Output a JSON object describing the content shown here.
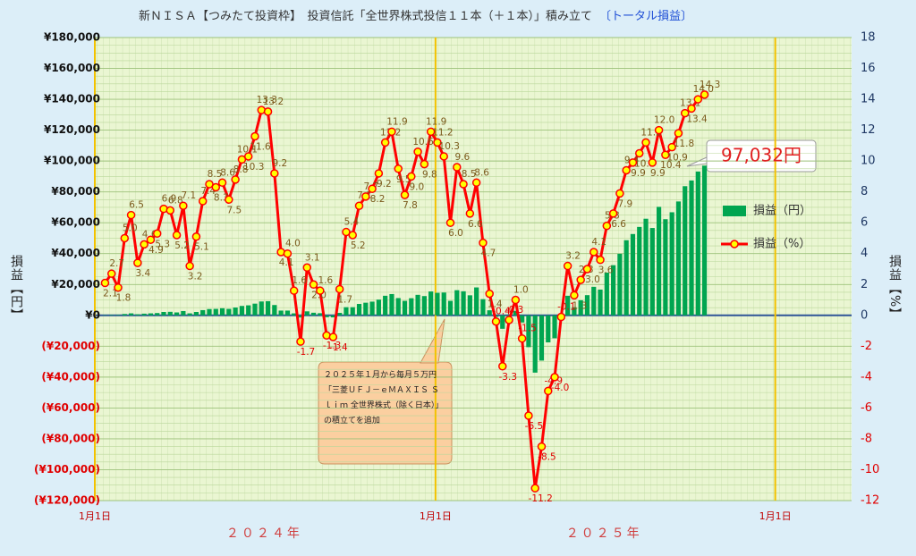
{
  "chart_data": {
    "type": "bar_line",
    "title": "新ＮＩＳＡ【つみたて投資枠】　投資信託「全世界株式投信１１本（＋１本）」積み立て",
    "subtitle": "〔トータル損益〕",
    "y_label": "損益【円】",
    "y2_label": "損益【%】",
    "x": [
      "2024-01-12",
      "2024-01-19",
      "2024-01-26",
      "2024-02-02",
      "2024-02-09",
      "2024-02-16",
      "2024-02-23",
      "2024-03-01",
      "2024-03-08",
      "2024-03-15",
      "2024-03-22",
      "2024-03-29",
      "2024-04-05",
      "2024-04-12",
      "2024-04-19",
      "2024-04-26",
      "2024-05-03",
      "2024-05-10",
      "2024-05-17",
      "2024-05-24",
      "2024-05-31",
      "2024-06-07",
      "2024-06-14",
      "2024-06-21",
      "2024-06-28",
      "2024-07-05",
      "2024-07-12",
      "2024-07-19",
      "2024-07-26",
      "2024-08-02",
      "2024-08-09",
      "2024-08-16",
      "2024-08-23",
      "2024-08-30",
      "2024-09-06",
      "2024-09-13",
      "2024-09-20",
      "2024-09-27",
      "2024-10-04",
      "2024-10-11",
      "2024-10-18",
      "2024-10-25",
      "2024-11-01",
      "2024-11-08",
      "2024-11-15",
      "2024-11-22",
      "2024-11-29",
      "2024-12-06",
      "2024-12-13",
      "2024-12-20",
      "2024-12-27",
      "2025-01-03",
      "2025-01-10",
      "2025-01-17",
      "2025-01-24",
      "2025-01-31",
      "2025-02-07",
      "2025-02-14",
      "2025-02-21",
      "2025-02-28",
      "2025-03-07",
      "2025-03-14",
      "2025-03-21",
      "2025-03-28",
      "2025-04-04",
      "2025-04-11",
      "2025-04-18",
      "2025-04-25",
      "2025-05-02",
      "2025-05-09",
      "2025-05-16",
      "2025-05-23",
      "2025-05-30",
      "2025-06-06",
      "2025-06-13",
      "2025-06-20",
      "2025-06-27",
      "2025-07-04",
      "2025-07-11",
      "2025-07-18",
      "2025-07-25",
      "2025-08-01",
      "2025-08-08",
      "2025-08-15",
      "2025-08-22",
      "2025-08-29",
      "2025-09-05",
      "2025-09-12",
      "2025-09-19",
      "2025-09-26",
      "2025-10-03",
      "2025-10-10",
      "2025-10-17"
    ],
    "series": [
      {
        "name": "損益（円）",
        "color": "#00a550",
        "type": "bar",
        "values": [
          200,
          300,
          300,
          900,
          1300,
          700,
          1100,
          1300,
          1500,
          2200,
          2300,
          1900,
          2800,
          1300,
          2200,
          3400,
          4100,
          4200,
          4600,
          4200,
          5100,
          6100,
          6500,
          7600,
          9000,
          9200,
          6700,
          3100,
          3100,
          1300,
          -1400,
          2600,
          1700,
          1400,
          -1200,
          -1300,
          1600,
          5300,
          5300,
          7400,
          8200,
          8900,
          10200,
          12700,
          13800,
          11200,
          9400,
          11100,
          13300,
          12500,
          15500,
          14600,
          14800,
          9400,
          16300,
          15600,
          13000,
          18100,
          10500,
          3300,
          -1000,
          -8700,
          -800,
          2900,
          -4600,
          -20600,
          -37100,
          -29300,
          -17500,
          -14800,
          -400,
          12700,
          5300,
          9800,
          13100,
          18500,
          16700,
          27700,
          32500,
          39900,
          48700,
          52700,
          57300,
          62600,
          56600,
          70300,
          62300,
          66800,
          73800,
          83700,
          87400,
          93200,
          97032
        ]
      },
      {
        "name": "損益（%）",
        "color": "#ff0000",
        "marker_color": "#ffff00",
        "type": "line",
        "axis": "y2",
        "values": [
          2.1,
          2.7,
          1.8,
          5.0,
          6.5,
          3.4,
          4.6,
          4.9,
          5.3,
          6.9,
          6.8,
          5.2,
          7.1,
          3.2,
          5.1,
          7.4,
          8.5,
          8.3,
          8.6,
          7.5,
          8.8,
          10.1,
          10.3,
          11.6,
          13.3,
          13.2,
          9.2,
          4.1,
          4.0,
          1.6,
          -1.7,
          3.1,
          2.0,
          1.6,
          -1.3,
          -1.4,
          1.7,
          5.4,
          5.2,
          7.1,
          7.7,
          8.2,
          9.2,
          11.2,
          11.9,
          9.5,
          7.8,
          9.0,
          10.6,
          9.8,
          11.9,
          11.2,
          10.3,
          6.0,
          9.6,
          8.5,
          6.6,
          8.6,
          4.7,
          1.4,
          -0.4,
          -3.3,
          -0.3,
          1.0,
          -1.5,
          -6.5,
          -11.2,
          -8.5,
          -4.9,
          -4.0,
          -0.1,
          3.2,
          1.3,
          2.3,
          3.0,
          4.1,
          3.6,
          5.8,
          6.6,
          7.9,
          9.4,
          9.9,
          10.5,
          11.2,
          9.9,
          12.0,
          10.4,
          10.9,
          11.8,
          13.1,
          13.4,
          14.0,
          14.3
        ],
        "value_labels": [
          "2.1",
          "2.7",
          "1.8",
          "5.0",
          "6.5",
          "3.4",
          "4.6",
          "4.9",
          "5.3",
          "6.9",
          "6.8",
          "5.2",
          "7.1",
          "3.2",
          "5.1",
          "7.4",
          "8.5",
          "8.3",
          "8.6",
          "7.5",
          "8.8",
          "10.1",
          "10.3",
          "11.6",
          "13.3",
          "13.2",
          "9.2",
          "4.1",
          "4.0",
          "1.6",
          "-1.7",
          "3.1",
          "2.0",
          "1.6",
          "-1.3",
          "-1.4",
          "1.7",
          "5.4",
          "5.2",
          "7.1",
          "7.7",
          "8.2",
          "9.2",
          "11.2",
          "11.9",
          "9.5",
          "7.8",
          "9.0",
          "10.6",
          "9.8",
          "11.9",
          "11.2",
          "10.3",
          "6.0",
          "9.6",
          "8.5",
          "6.6",
          "8.6",
          "4.7",
          "1.4",
          "-0.4",
          "-3.3",
          "-0.3",
          "1.0",
          "-1.5",
          "-6.5",
          "-11.2",
          "-8.5",
          "-4.9",
          "-4.0",
          "-0.1",
          "3.2",
          "1.3",
          "2.3",
          "3.0",
          "4.1",
          "3.6",
          "5.8",
          "6.6",
          "7.9",
          "9.4",
          "9.9",
          "10.5",
          "11.2",
          "9.9",
          "12.0",
          "10.4",
          "10.9",
          "11.8",
          "13.1",
          "13.4",
          "14.0",
          "14.3"
        ]
      }
    ],
    "xlim": [
      "2024-01-01",
      "2026-03-24"
    ],
    "xticks": [
      {
        "value": "2024-01-01",
        "label": "1月1日"
      },
      {
        "value": "2025-01-01",
        "label": "1月1日"
      },
      {
        "value": "2026-01-01",
        "label": "1月1日"
      }
    ],
    "x_group_labels": [
      {
        "value": "2024-07-01",
        "label": "２０２４年"
      },
      {
        "value": "2025-07-01",
        "label": "２０２５年"
      }
    ],
    "ylim": [
      -120000,
      180000
    ],
    "yticks": [
      {
        "value": -120000,
        "label": "(¥120,000)"
      },
      {
        "value": -100000,
        "label": "(¥100,000)"
      },
      {
        "value": -80000,
        "label": "(¥80,000)"
      },
      {
        "value": -60000,
        "label": "(¥60,000)"
      },
      {
        "value": -40000,
        "label": "(¥40,000)"
      },
      {
        "value": -20000,
        "label": "(¥20,000)"
      },
      {
        "value": 0,
        "label": "¥0"
      },
      {
        "value": 20000,
        "label": "¥20,000"
      },
      {
        "value": 40000,
        "label": "¥40,000"
      },
      {
        "value": 60000,
        "label": "¥60,000"
      },
      {
        "value": 80000,
        "label": "¥80,000"
      },
      {
        "value": 100000,
        "label": "¥100,000"
      },
      {
        "value": 120000,
        "label": "¥120,000"
      },
      {
        "value": 140000,
        "label": "¥140,000"
      },
      {
        "value": 160000,
        "label": "¥160,000"
      },
      {
        "value": 180000,
        "label": "¥180,000"
      }
    ],
    "y2lim": [
      -12,
      18
    ],
    "y2ticks": [
      -12,
      -10,
      -8,
      -6,
      -4,
      -2,
      0,
      2,
      4,
      6,
      8,
      10,
      12,
      14,
      16,
      18
    ],
    "grid": true,
    "legend": "right",
    "annotations": [
      {
        "text": "２０２５年１月から毎月５万円「三菱ＵＦＪ－ｅＭＡＸＩＳ Ｓｌｉｍ 全世界株式（除く日本）」の積立てを追加"
      },
      {
        "text": "97,032円"
      }
    ]
  }
}
